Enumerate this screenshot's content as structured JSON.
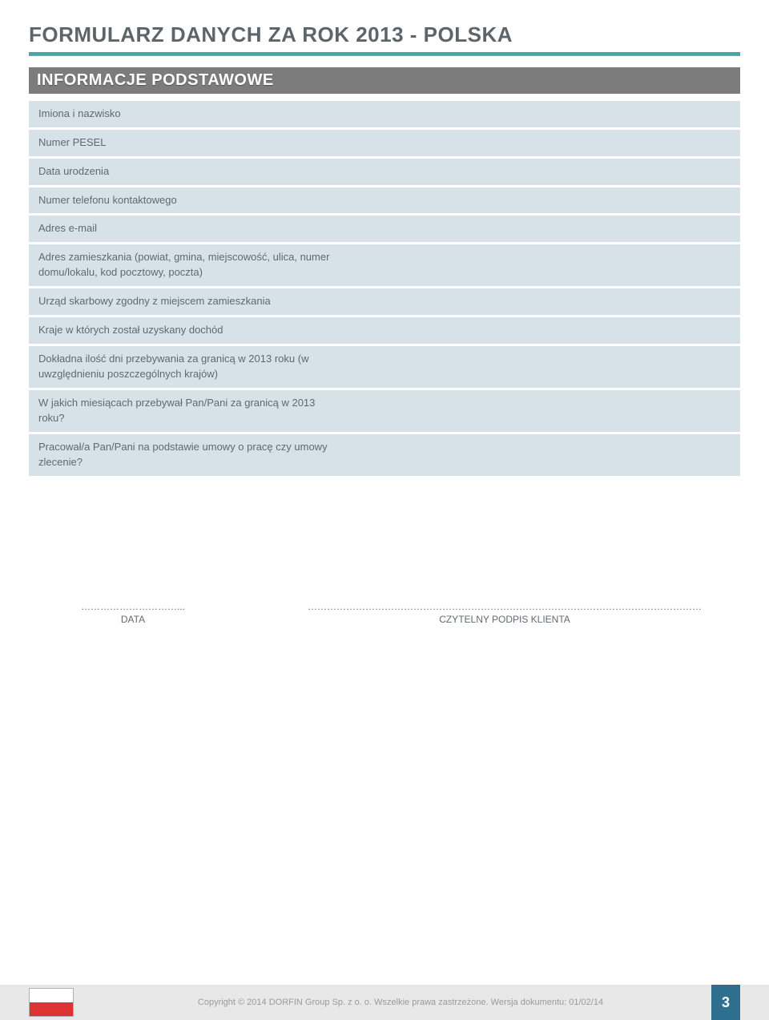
{
  "colors": {
    "title": "#5d656b",
    "underline_teal": "#4aa6a6",
    "underline_gray": "#999999",
    "section_header_bg": "#7c7c7c",
    "section_header_text": "#ffffff",
    "row_bg": "#d6e2e7",
    "row_text": "#5d6a72",
    "footer_bg": "#e8e8e8",
    "footer_text": "#9a9a9a",
    "page_number_bg": "#2e6f8f",
    "flag_white": "#ffffff",
    "flag_red": "#dd3333",
    "flag_border": "#b0b0b0"
  },
  "typography": {
    "title_fontsize": 26,
    "section_header_fontsize": 20,
    "label_fontsize": 13,
    "footer_fontsize": 11,
    "signature_fontsize": 12,
    "page_number_fontsize": 18
  },
  "header": {
    "title": "FORMULARZ DANYCH ZA ROK 2013 - POLSKA"
  },
  "section": {
    "title": "INFORMACJE PODSTAWOWE"
  },
  "rows": [
    {
      "label": "Imiona i nazwisko",
      "tall": false
    },
    {
      "label": "Numer PESEL",
      "tall": false
    },
    {
      "label": "Data urodzenia",
      "tall": false
    },
    {
      "label": "Numer telefonu kontaktowego",
      "tall": false
    },
    {
      "label": "Adres e-mail",
      "tall": false
    },
    {
      "label": "Adres zamieszkania (powiat, gmina, miejscowość, ulica, numer domu/lokalu, kod pocztowy, poczta)",
      "tall": true
    },
    {
      "label": "Urząd skarbowy zgodny z miejscem zamieszkania",
      "tall": false
    },
    {
      "label": "Kraje w których został uzyskany dochód",
      "tall": false
    },
    {
      "label": "Dokładna ilość dni przebywania za granicą w 2013 roku (w uwzględnieniu poszczególnych krajów)",
      "tall": true
    },
    {
      "label": "W jakich miesiącach przebywał Pan/Pani za granicą w 2013 roku?",
      "tall": true
    },
    {
      "label": "Pracował/a Pan/Pani na podstawie umowy o pracę czy umowy zlecenie?",
      "tall": true
    }
  ],
  "signature": {
    "dots_left": "…………………………...",
    "dots_right": "……………………………………………………………………………………………………………",
    "date_label": "DATA",
    "sign_label": "CZYTELNY PODPIS KLIENTA"
  },
  "footer": {
    "copyright": "Copyright © 2014 DORFIN Group Sp. z o. o. Wszelkie prawa zastrzeżone. Wersja dokumentu: 01/02/14",
    "page_number": "3"
  }
}
